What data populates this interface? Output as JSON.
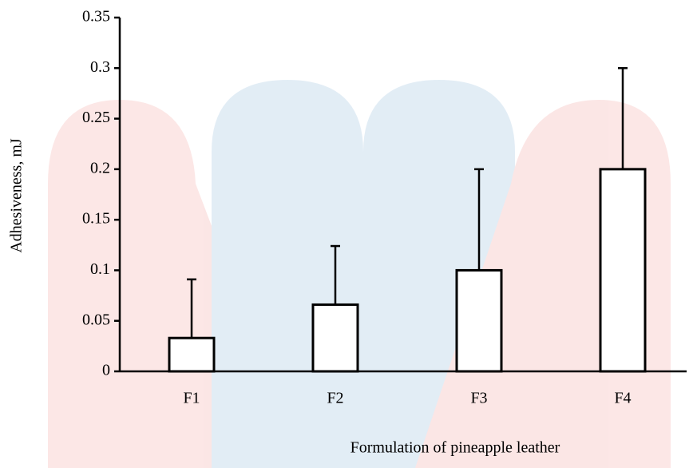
{
  "chart_data": {
    "type": "bar",
    "x_label": "Formulation of pineapple leather",
    "y_label": "Adhesiveness, mJ",
    "categories": [
      "F1",
      "F2",
      "F3",
      "F4"
    ],
    "values": [
      0.033,
      0.066,
      0.1,
      0.2
    ],
    "errors": [
      0.058,
      0.058,
      0.1,
      0.1
    ],
    "color": "#ffffff",
    "ylim": [
      0,
      0.35
    ],
    "yticks": [
      0,
      0.05,
      0.1,
      0.15,
      0.2,
      0.25,
      0.3,
      0.35
    ]
  }
}
